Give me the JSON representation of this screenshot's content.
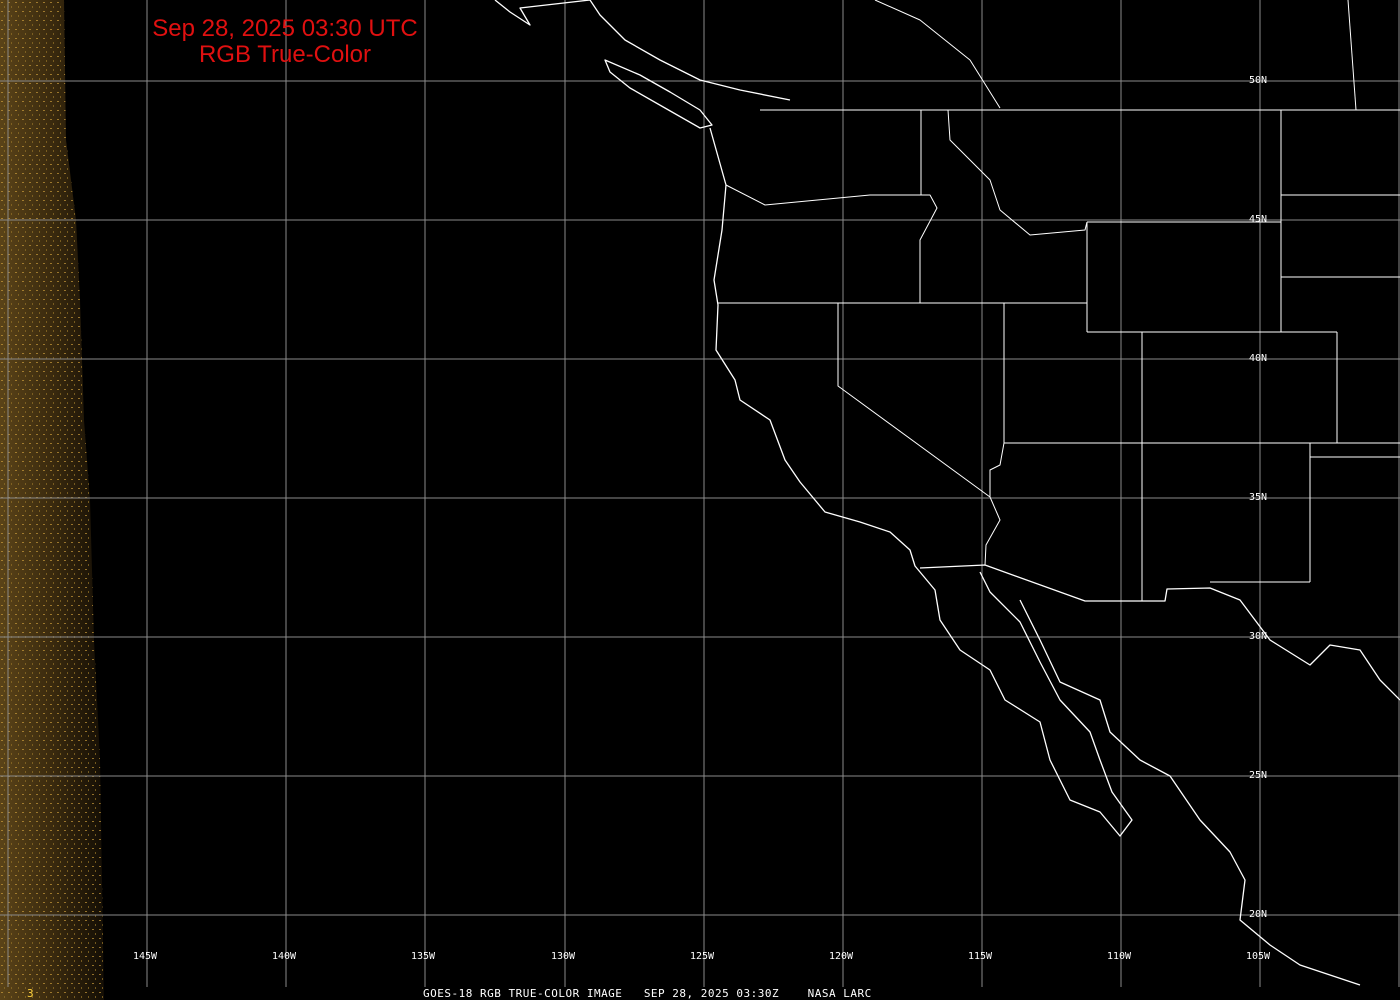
{
  "title": {
    "line1": "Sep 28, 2025 03:30 UTC",
    "line2": "RGB True-Color"
  },
  "lat_labels": [
    "50N",
    "45N",
    "40N",
    "35N",
    "30N",
    "25N",
    "20N"
  ],
  "lon_labels": [
    "145W",
    "140W",
    "135W",
    "130W",
    "125W",
    "120W",
    "115W",
    "110W",
    "105W"
  ],
  "footer": {
    "source": "GOES-18 RGB TRUE-COLOR IMAGE",
    "time": "SEP 28, 2025 03:30Z",
    "credit": "NASA LARC"
  },
  "frame_number": "3",
  "colors": {
    "title": "#e01010",
    "grid": "#8a8a8a",
    "borders": "#ffffff",
    "frame_number": "#ffd23c"
  }
}
